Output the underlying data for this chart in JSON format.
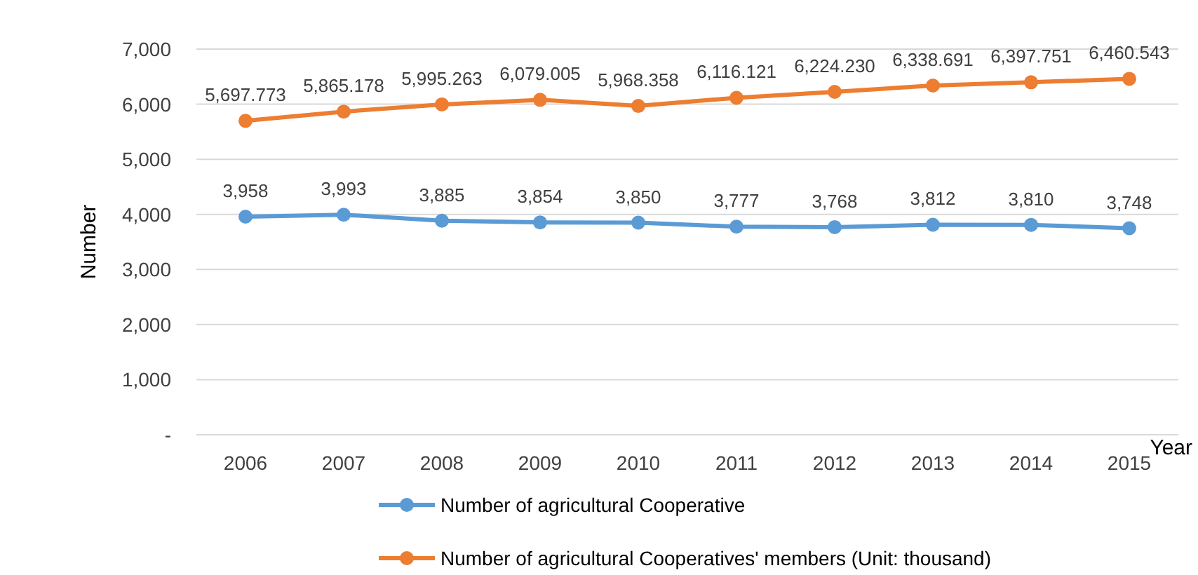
{
  "chart_data": {
    "type": "line",
    "ylabel": "Number",
    "xlabel": "Year",
    "categories": [
      "2006",
      "2007",
      "2008",
      "2009",
      "2010",
      "2011",
      "2012",
      "2013",
      "2014",
      "2015"
    ],
    "series": [
      {
        "name": "Number of agricultural Cooperative",
        "color": "#5b9bd5",
        "values": [
          3958,
          3993,
          3885,
          3854,
          3850,
          3777,
          3768,
          3812,
          3810,
          3748
        ],
        "value_labels": [
          "3,958",
          "3,993",
          "3,885",
          "3,854",
          "3,850",
          "3,777",
          "3,768",
          "3,812",
          "3,810",
          "3,748"
        ]
      },
      {
        "name": "Number of agricultural Cooperatives' members (Unit: thousand)",
        "color": "#ed7d31",
        "values": [
          5697.773,
          5865.178,
          5995.263,
          6079.005,
          5968.358,
          6116.121,
          6224.23,
          6338.691,
          6397.751,
          6460.543
        ],
        "value_labels": [
          "5,697.773",
          "5,865.178",
          "5,995.263",
          "6,079.005",
          "5,968.358",
          "6,116.121",
          "6,224.230",
          "6,338.691",
          "6,397.751",
          "6,460.543"
        ]
      }
    ],
    "ylim": [
      0,
      7000
    ],
    "yticks": [
      {
        "value": 0,
        "label": "-"
      },
      {
        "value": 1000,
        "label": "1,000"
      },
      {
        "value": 2000,
        "label": "2,000"
      },
      {
        "value": 3000,
        "label": "3,000"
      },
      {
        "value": 4000,
        "label": "4,000"
      },
      {
        "value": 5000,
        "label": "5,000"
      },
      {
        "value": 6000,
        "label": "6,000"
      },
      {
        "value": 7000,
        "label": "7,000"
      }
    ],
    "grid": "y",
    "legend": "bottom",
    "marker": "circle",
    "line_style": "solid"
  }
}
